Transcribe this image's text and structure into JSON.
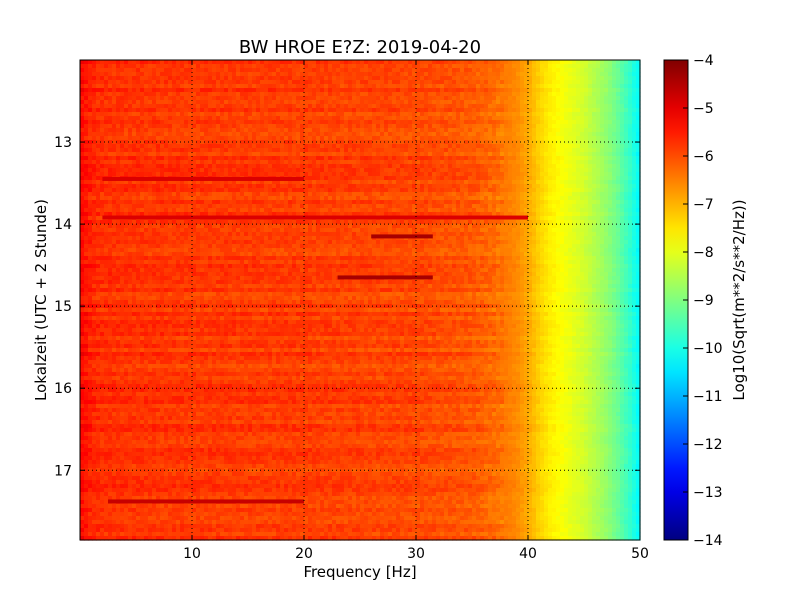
{
  "chart_data": {
    "type": "heatmap",
    "title": "BW HROE E?Z: 2019-04-20",
    "xlabel": "Frequency [Hz]",
    "ylabel": "Lokalzeit (UTC + 2 Stunde)",
    "xlim": [
      0,
      50
    ],
    "ylim": [
      17.85,
      12.0
    ],
    "x_ticks": [
      10,
      20,
      30,
      40,
      50
    ],
    "x_tick_labels": [
      "10",
      "20",
      "30",
      "40",
      "50"
    ],
    "y_ticks": [
      13,
      14,
      15,
      16,
      17
    ],
    "y_tick_labels": [
      "13",
      "14",
      "15",
      "16",
      "17"
    ],
    "grid": true,
    "colormap": "jet",
    "colorbar": {
      "label": "Log10(Sqrt(m**2/s**2/Hz))",
      "range": [
        -14,
        -4
      ],
      "ticks": [
        -4,
        -5,
        -6,
        -7,
        -8,
        -9,
        -10,
        -11,
        -12,
        -13,
        -14
      ],
      "tick_labels": [
        "−4",
        "−5",
        "−6",
        "−7",
        "−8",
        "−9",
        "−10",
        "−11",
        "−12",
        "−13",
        "−14"
      ]
    },
    "spectrum_profile": {
      "frequency_hz": [
        0,
        1,
        2,
        5,
        10,
        20,
        30,
        35,
        37,
        39,
        40,
        41,
        42,
        43,
        44,
        45,
        46,
        47,
        48,
        49,
        50
      ],
      "value": [
        -5.3,
        -5.6,
        -5.7,
        -5.75,
        -5.8,
        -5.85,
        -5.95,
        -6.1,
        -6.3,
        -6.6,
        -6.9,
        -7.3,
        -7.6,
        -7.8,
        -8.0,
        -8.2,
        -8.5,
        -8.8,
        -9.2,
        -9.7,
        -10.3
      ]
    },
    "highlighted_events": [
      {
        "time": 13.45,
        "f_start": 2.0,
        "f_end": 20.0,
        "value": -4.9
      },
      {
        "time": 13.92,
        "f_start": 2.0,
        "f_end": 40.0,
        "value": -4.9
      },
      {
        "time": 14.15,
        "f_start": 26.0,
        "f_end": 31.5,
        "value": -4.4
      },
      {
        "time": 14.65,
        "f_start": 23.0,
        "f_end": 31.5,
        "value": -4.4
      },
      {
        "time": 17.38,
        "f_start": 2.5,
        "f_end": 20.0,
        "value": -4.7
      }
    ]
  }
}
